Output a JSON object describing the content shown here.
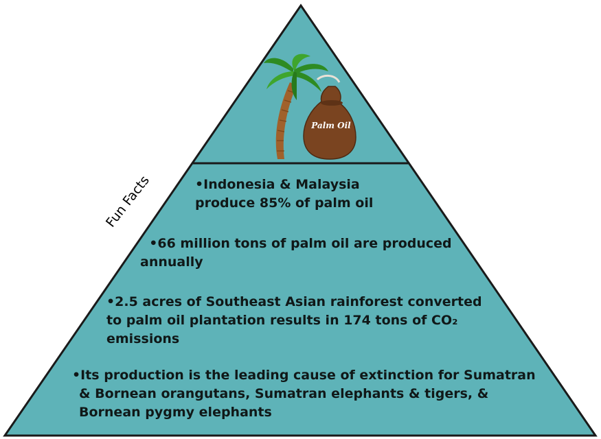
{
  "diagram": {
    "side_label": "Fun Facts",
    "top_icon": {
      "bag_label": "Palm Oil",
      "tree_icon": "palm-tree-icon",
      "bag_icon": "oil-sack-icon"
    },
    "facts": [
      {
        "lines": [
          "•Indonesia & Malaysia",
          "produce 85% of palm oil"
        ]
      },
      {
        "lines": [
          "  •66 million tons of palm oil are produced",
          "annually"
        ]
      },
      {
        "lines": [
          "•2.5 acres of Southeast Asian rainforest converted",
          "to palm oil plantation results in 174 tons of CO₂",
          "emissions"
        ]
      },
      {
        "lines": [
          "•Its production is the leading cause of extinction for Sumatran",
          "& Bornean orangutans, Sumatran elephants & tigers, &",
          "Bornean pygmy elephants"
        ]
      }
    ]
  },
  "colors": {
    "fill": "#5eb3b8",
    "stroke": "#1a1a1a",
    "trunk": "#a0612b",
    "leaf": "#2e8b22",
    "sack": "#7a4420"
  }
}
